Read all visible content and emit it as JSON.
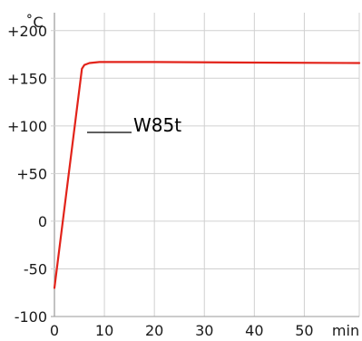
{
  "chart_data": {
    "type": "line",
    "y_unit_label": "˚C",
    "x_unit_label": "min",
    "x_ticks": [
      "0",
      "10",
      "20",
      "30",
      "40",
      "50"
    ],
    "y_ticks": [
      "+200",
      "+150",
      "+100",
      "+50",
      "0",
      "-50",
      "-100"
    ],
    "xlim": [
      0,
      61
    ],
    "ylim": [
      -100,
      215
    ],
    "grid": true,
    "series": [
      {
        "name": "W85t",
        "color": "#e2231a",
        "x": [
          0,
          5.5,
          6.0,
          7.0,
          9.0,
          20,
          40,
          61
        ],
        "y": [
          -70,
          160,
          164,
          166,
          167,
          167,
          166.5,
          166
        ]
      }
    ],
    "legend": {
      "label": "W85t",
      "line_color": "#000000"
    }
  }
}
